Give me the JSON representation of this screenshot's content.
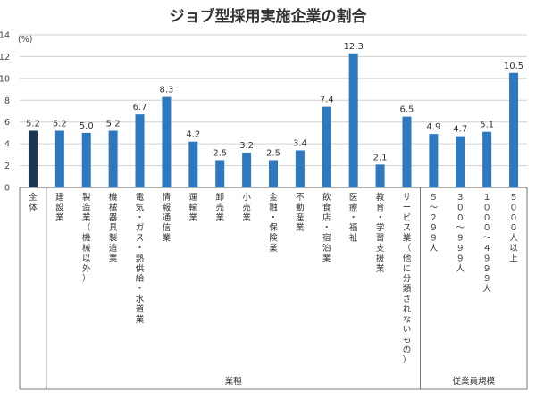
{
  "chart_data": {
    "type": "bar",
    "title": "ジョブ型採用実施企業の割合",
    "unit_label": "(%)",
    "ylim": [
      0,
      14
    ],
    "yticks": [
      0,
      2,
      4,
      6,
      8,
      10,
      12,
      14
    ],
    "grid": true,
    "categories": [
      "全体",
      "建設業",
      "製造業（機械以外）",
      "機械器具製造業",
      "電気・ガス・熱供給・水道業",
      "情報通信業",
      "運輸業",
      "卸売業",
      "小売業",
      "金融・保険業",
      "不動産業",
      "飲食店・宿泊業",
      "医療・福祉",
      "教育・学習支援業",
      "サービス業（他に分類されないもの）",
      "５～２９９人",
      "３００～９９９人",
      "１０００～４９９９人",
      "５０００人以上"
    ],
    "values": [
      5.2,
      5.2,
      5.0,
      5.2,
      6.7,
      8.3,
      4.2,
      2.5,
      3.2,
      2.5,
      3.4,
      7.4,
      12.3,
      2.1,
      6.5,
      4.9,
      4.7,
      5.1,
      10.5
    ],
    "value_labels": [
      "5.2",
      "5.2",
      "5.0",
      "5.2",
      "6.7",
      "8.3",
      "4.2",
      "2.5",
      "3.2",
      "2.5",
      "3.4",
      "7.4",
      "12.3",
      "2.1",
      "6.5",
      "4.9",
      "4.7",
      "5.1",
      "10.5"
    ],
    "highlight_index": 0,
    "colors": {
      "highlight": "#1b3553",
      "bar": "#2e78bf",
      "grid": "#d0d0d0",
      "axis": "#555555"
    },
    "groups": [
      {
        "label": "業種",
        "from": 1,
        "to": 14
      },
      {
        "label": "従業員規模",
        "from": 15,
        "to": 18
      }
    ]
  }
}
